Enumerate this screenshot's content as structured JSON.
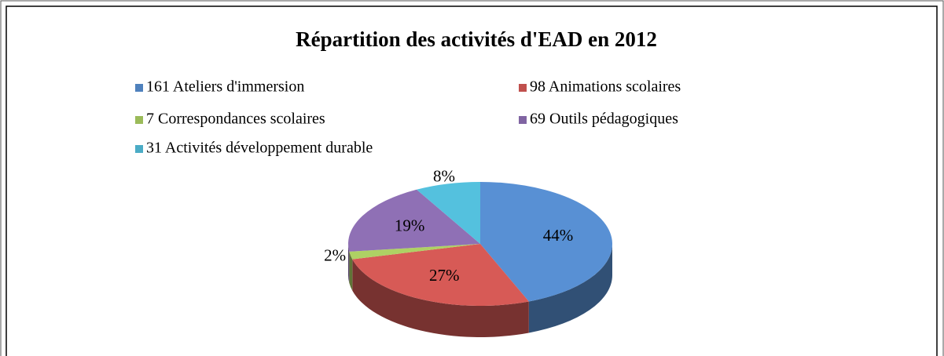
{
  "chart_data": {
    "type": "pie",
    "title": "Répartition des activités d'EAD en 2012",
    "categories": [
      "161 Ateliers d'immersion",
      "98 Animations scolaires",
      "7 Correspondances scolaires",
      "69 Outils pédagogiques",
      "31 Activités  développement durable"
    ],
    "values": [
      44,
      27,
      2,
      19,
      8
    ],
    "value_labels": [
      "44%",
      "27%",
      "2%",
      "19%",
      "8%"
    ],
    "colors": [
      "#4f81bd",
      "#c0504d",
      "#9bbb59",
      "#8064a2",
      "#4bacc6"
    ],
    "legend": "top"
  }
}
